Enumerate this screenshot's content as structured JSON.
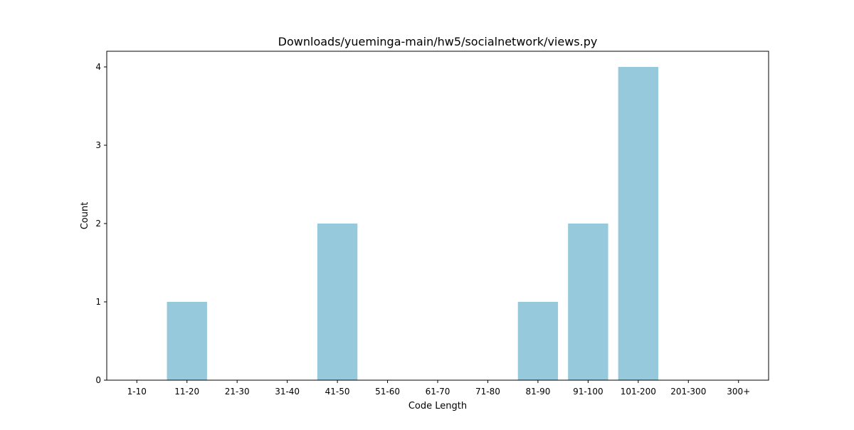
{
  "chart_data": {
    "type": "bar",
    "title": "Downloads/yueminga-main/hw5/socialnetwork/views.py",
    "xlabel": "Code Length",
    "ylabel": "Count",
    "categories": [
      "1-10",
      "11-20",
      "21-30",
      "31-40",
      "41-50",
      "51-60",
      "61-70",
      "71-80",
      "81-90",
      "91-100",
      "101-200",
      "201-300",
      "300+"
    ],
    "values": [
      0,
      1,
      0,
      0,
      2,
      0,
      0,
      0,
      1,
      2,
      4,
      0,
      0
    ],
    "yticks": [
      0,
      1,
      2,
      3,
      4
    ],
    "ylim": [
      0,
      4.2
    ],
    "bar_color": "#96c9dc",
    "grid": false,
    "legend": "none"
  }
}
